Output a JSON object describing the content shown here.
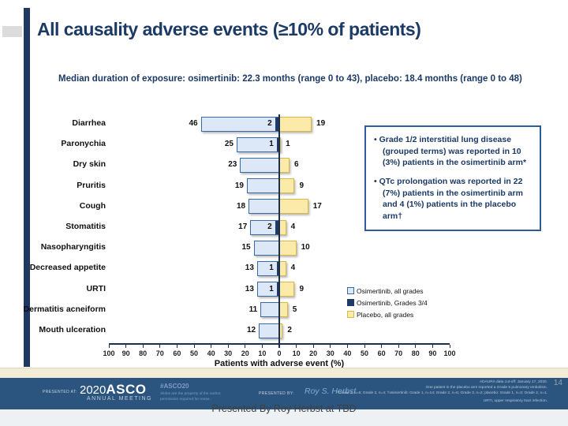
{
  "slide": {
    "title": "All causality adverse events (≥10% of patients)",
    "subtitle": "Median duration of exposure: osimertinib: 22.3 months (range 0 to 43), placebo: 18.4 months (range 0 to 48)"
  },
  "chart_data": {
    "type": "bar",
    "orientation": "horizontal-diverging",
    "xlabel": "Patients with adverse event (%)",
    "xlim": [
      -100,
      100
    ],
    "grid": false,
    "legend_position": "bottom-right",
    "axis_tick_labels": [
      "100",
      "90",
      "80",
      "70",
      "60",
      "50",
      "40",
      "30",
      "20",
      "10",
      "0",
      "10",
      "20",
      "30",
      "40",
      "50",
      "60",
      "70",
      "80",
      "90",
      "100"
    ],
    "categories": [
      "Diarrhea",
      "Paronychia",
      "Dry skin",
      "Pruritis",
      "Cough",
      "Stomatitis",
      "Nasopharyngitis",
      "Decreased appetite",
      "URTI",
      "Dermatitis acneiform",
      "Mouth ulceration"
    ],
    "series": [
      {
        "name": "Osimertinib, all grades",
        "side": "left",
        "color": "#dce8f7",
        "border": "#3a6aa5",
        "values": [
          46,
          25,
          23,
          19,
          18,
          17,
          15,
          13,
          13,
          11,
          12
        ]
      },
      {
        "name": "Osimertinib, Grades 3/4",
        "side": "left",
        "color": "#1e3a68",
        "border": "#1e3a68",
        "values": [
          2,
          1,
          0,
          0,
          0,
          2,
          0,
          1,
          1,
          0,
          0
        ]
      },
      {
        "name": "Placebo, all grades",
        "side": "right",
        "color": "#fceba8",
        "border": "#d9b945",
        "values": [
          19,
          1,
          6,
          9,
          17,
          4,
          10,
          4,
          9,
          5,
          2
        ]
      }
    ]
  },
  "callout_box": {
    "bullets": [
      "• Grade 1/2 interstitial lung disease (grouped terms) was reported in 10 (3%) patients in the osimertinib arm*",
      "• QTc prolongation was reported in 22 (7%) patients in the osimertinib arm and 4 (1%) patients in the placebo arm†"
    ]
  },
  "footer": {
    "presented_at_label": "PRESENTED AT:",
    "logo_prefix": "2020",
    "logo_main": "ASCO",
    "logo_sub": "ANNUAL MEETING",
    "hashtag": "#ASCO20",
    "disclaimer_line1": "Slides are the property of the author,",
    "disclaimer_line2": "permission required for reuse.",
    "presented_by_label": "PRESENTED BY:",
    "presenter": "Roy S. Herbst",
    "slide_number": "14",
    "footnotes": [
      "ADAURA data cut-off: January 17, 2020.",
      "One patient in the placebo arm reported a Grade 5 pulmonary embolism.",
      "*Grade 1, n=6; Grade 2, n=4; †osimertinib: Grade 1, n=14; Grade 2, n=6; Grade 3, n=2; placebo: Grade 1, n=3; Grade 2, n=1.",
      "URTI, upper respiratory tract infection."
    ],
    "caption": "Presented By Roy Herbst at TBD"
  },
  "colors": {
    "accent_navy": "#1f3864",
    "axis": "#1a2f52",
    "footer_navy": "#2b557f",
    "cream_band": "#f2ecd6"
  }
}
